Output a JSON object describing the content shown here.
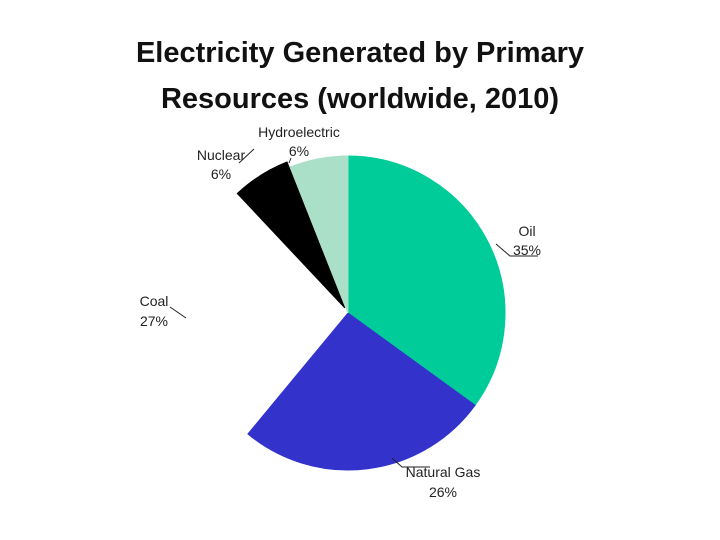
{
  "chart_data": {
    "type": "pie",
    "title_line1": "Electricity Generated by Primary",
    "title_line2": "Resources (worldwide, 2010)",
    "slices": [
      {
        "label": "Oil",
        "percent_label": "35%",
        "value": 35,
        "color": "#00cc99",
        "exploded": false
      },
      {
        "label": "Natural Gas",
        "percent_label": "26%",
        "value": 26,
        "color": "#3333cc",
        "exploded": false
      },
      {
        "label": "Coal",
        "percent_label": "27%",
        "value": 27,
        "color": "#ffffff",
        "exploded": true
      },
      {
        "label": "Nuclear",
        "percent_label": "6%",
        "value": 6,
        "color": "#000000",
        "exploded": true
      },
      {
        "label": "Hydroelectric",
        "percent_label": "6%",
        "value": 6,
        "color": "#aae0c8",
        "exploded": false
      }
    ]
  }
}
